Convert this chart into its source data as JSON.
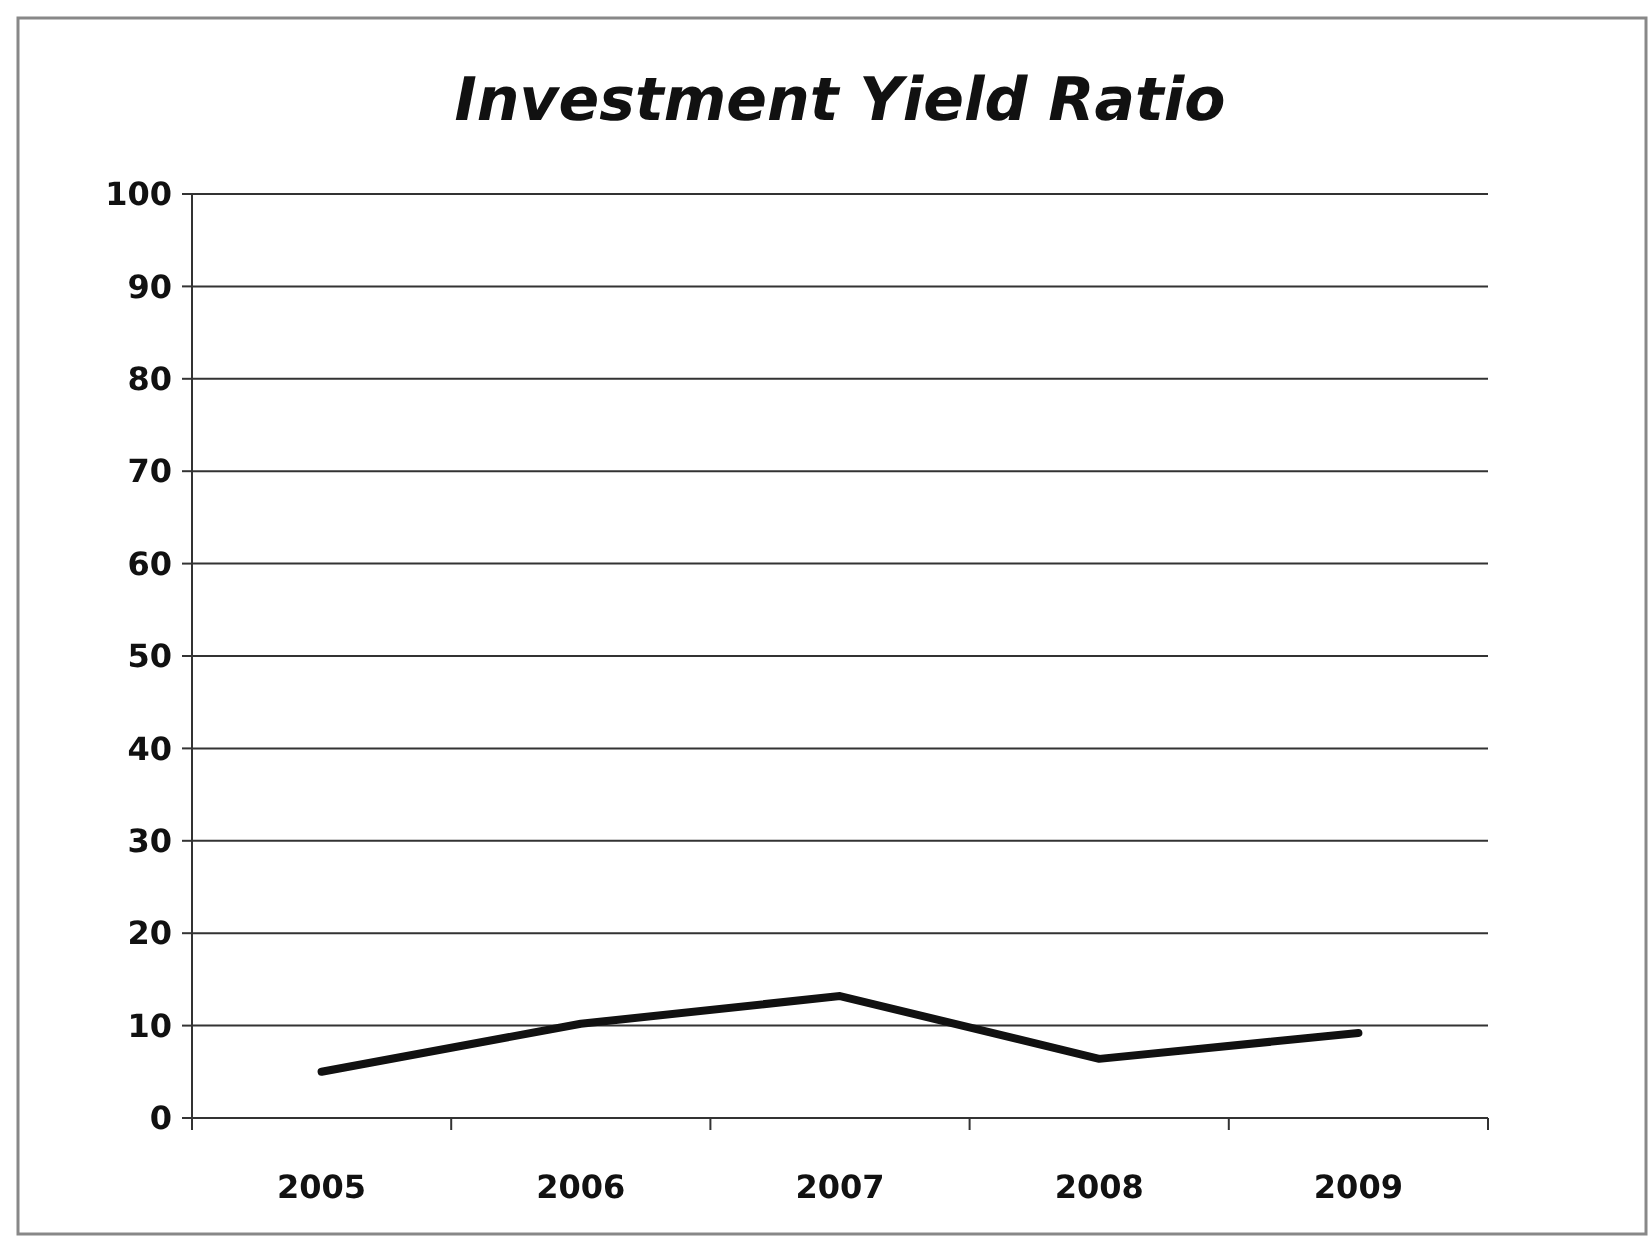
{
  "chart_data": {
    "type": "line",
    "title": "Investment Yield Ratio",
    "categories": [
      "2005",
      "2006",
      "2007",
      "2008",
      "2009"
    ],
    "series": [
      {
        "color": "#111111",
        "values": [
          5,
          10.2,
          13.2,
          6.4,
          9.2
        ]
      }
    ],
    "ylim": [
      0,
      100
    ],
    "yticks": [
      0,
      10,
      20,
      30,
      40,
      50,
      60,
      70,
      80,
      90,
      100
    ],
    "grid": "y",
    "marker": "none",
    "line_style": "solid"
  }
}
